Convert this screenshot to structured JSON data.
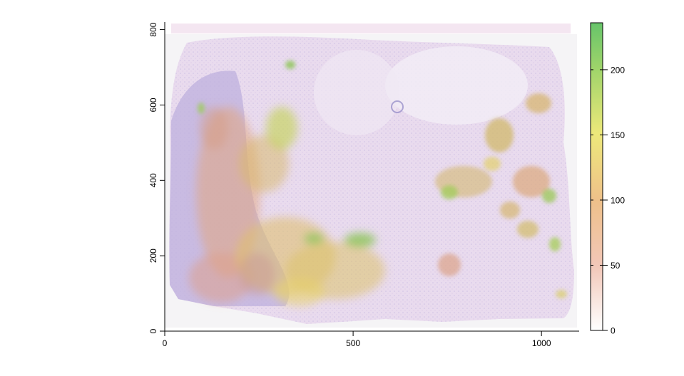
{
  "chart_data": {
    "type": "heatmap",
    "title": "",
    "xlabel": "",
    "ylabel": "",
    "xlim": [
      0,
      1100
    ],
    "ylim": [
      0,
      820
    ],
    "x_ticks": [
      0,
      500,
      1000
    ],
    "x_tick_labels": [
      "0",
      "500",
      "1000"
    ],
    "y_ticks": [
      0,
      200,
      400,
      600,
      800
    ],
    "y_tick_labels": [
      "0",
      "200",
      "400",
      "600",
      "800"
    ],
    "colorbar": {
      "range": [
        0,
        236
      ],
      "ticks": [
        0,
        50,
        100,
        150,
        200
      ],
      "tick_labels": [
        "0",
        "50",
        "100",
        "150",
        "200"
      ],
      "colors": [
        "#ffffff",
        "#f2c7b8",
        "#eec08a",
        "#ede87a",
        "#9fd46a",
        "#67c46a"
      ]
    },
    "background_image": "H&E tissue section overlaid with heat values",
    "grid": false
  }
}
